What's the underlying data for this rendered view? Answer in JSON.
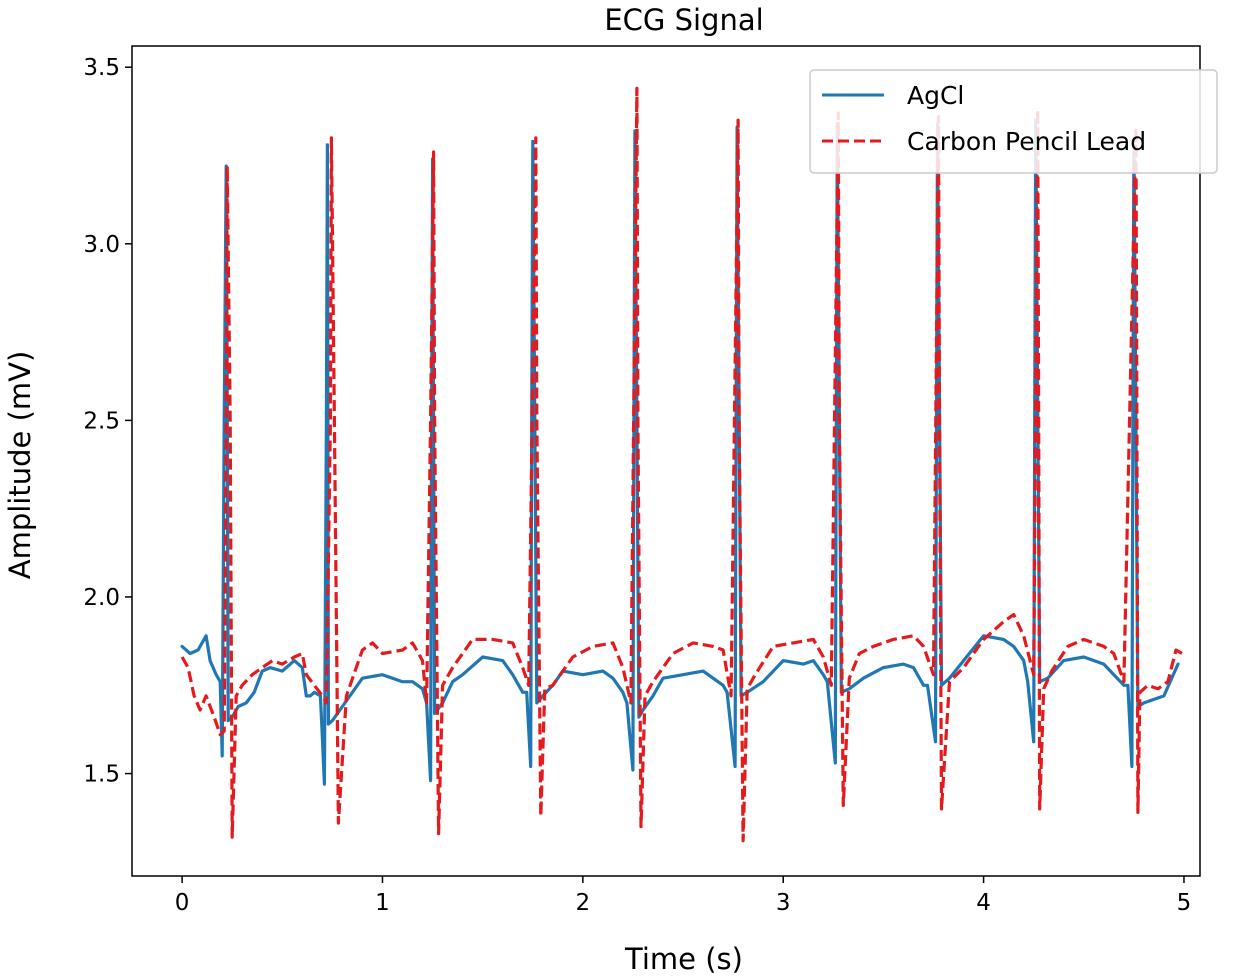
{
  "chart_data": {
    "type": "line",
    "title": "ECG Signal",
    "xlabel": "Time (s)",
    "ylabel": "Amplitude (mV)",
    "xlim": [
      -0.25,
      5.08
    ],
    "ylim": [
      1.21,
      3.56
    ],
    "x_ticks": [
      0,
      1,
      2,
      3,
      4,
      5
    ],
    "y_ticks": [
      1.5,
      2.0,
      2.5,
      3.0,
      3.5
    ],
    "x_tick_labels": [
      "0",
      "1",
      "2",
      "3",
      "4",
      "5"
    ],
    "y_tick_labels": [
      "1.5",
      "2.0",
      "2.5",
      "3.0",
      "3.5"
    ],
    "legend_position": "top-right",
    "series": [
      {
        "name": "AgCl",
        "color": "#1f77b4",
        "style": "solid",
        "x": [
          0,
          0.04,
          0.08,
          0.1,
          0.12,
          0.14,
          0.17,
          0.19,
          0.2,
          0.21,
          0.22,
          0.225,
          0.23,
          0.25,
          0.28,
          0.32,
          0.36,
          0.4,
          0.44,
          0.5,
          0.56,
          0.6,
          0.62,
          0.64,
          0.66,
          0.69,
          0.7,
          0.71,
          0.72,
          0.725,
          0.73,
          0.75,
          0.8,
          0.9,
          1.0,
          1.1,
          1.15,
          1.2,
          1.22,
          1.24,
          1.245,
          1.25,
          1.26,
          1.3,
          1.35,
          1.4,
          1.5,
          1.6,
          1.65,
          1.7,
          1.72,
          1.74,
          1.745,
          1.75,
          1.77,
          1.8,
          1.85,
          1.9,
          2.0,
          2.1,
          2.15,
          2.2,
          2.22,
          2.25,
          2.255,
          2.26,
          2.28,
          2.3,
          2.35,
          2.4,
          2.5,
          2.6,
          2.65,
          2.7,
          2.72,
          2.76,
          2.765,
          2.77,
          2.79,
          2.82,
          2.9,
          3.0,
          3.1,
          3.15,
          3.2,
          3.22,
          3.26,
          3.265,
          3.27,
          3.29,
          3.33,
          3.4,
          3.5,
          3.6,
          3.65,
          3.7,
          3.72,
          3.76,
          3.765,
          3.77,
          3.79,
          3.83,
          3.9,
          4.0,
          4.1,
          4.15,
          4.2,
          4.22,
          4.25,
          4.255,
          4.26,
          4.28,
          4.32,
          4.4,
          4.5,
          4.6,
          4.65,
          4.7,
          4.72,
          4.74,
          4.745,
          4.75,
          4.77,
          4.8,
          4.9,
          4.97
        ],
        "y": [
          1.86,
          1.84,
          1.85,
          1.87,
          1.89,
          1.82,
          1.78,
          1.76,
          1.55,
          2.5,
          3.22,
          2.6,
          1.65,
          1.66,
          1.69,
          1.7,
          1.73,
          1.79,
          1.8,
          1.79,
          1.82,
          1.8,
          1.72,
          1.72,
          1.73,
          1.72,
          1.6,
          1.47,
          2.5,
          3.28,
          1.64,
          1.65,
          1.69,
          1.77,
          1.78,
          1.76,
          1.76,
          1.74,
          1.7,
          1.48,
          2.5,
          3.24,
          1.67,
          1.7,
          1.76,
          1.78,
          1.83,
          1.82,
          1.78,
          1.73,
          1.73,
          1.52,
          2.5,
          3.29,
          1.7,
          1.72,
          1.75,
          1.79,
          1.78,
          1.79,
          1.77,
          1.73,
          1.7,
          1.51,
          2.5,
          3.32,
          1.66,
          1.68,
          1.72,
          1.77,
          1.78,
          1.79,
          1.77,
          1.75,
          1.73,
          1.52,
          2.5,
          3.33,
          1.72,
          1.73,
          1.76,
          1.82,
          1.81,
          1.82,
          1.78,
          1.76,
          1.53,
          2.5,
          3.34,
          1.73,
          1.74,
          1.77,
          1.8,
          1.81,
          1.8,
          1.75,
          1.75,
          1.59,
          2.5,
          3.34,
          1.75,
          1.77,
          1.82,
          1.89,
          1.88,
          1.86,
          1.82,
          1.76,
          1.59,
          2.5,
          3.35,
          1.76,
          1.77,
          1.82,
          1.83,
          1.81,
          1.78,
          1.75,
          1.75,
          1.52,
          2.5,
          3.3,
          1.69,
          1.7,
          1.72,
          1.81
        ]
      },
      {
        "name": "Carbon Pencil Lead",
        "color": "#e41a1c",
        "style": "dashed",
        "x": [
          0,
          0.03,
          0.06,
          0.09,
          0.12,
          0.16,
          0.19,
          0.21,
          0.22,
          0.225,
          0.24,
          0.25,
          0.27,
          0.3,
          0.35,
          0.4,
          0.45,
          0.5,
          0.56,
          0.6,
          0.62,
          0.66,
          0.7,
          0.72,
          0.74,
          0.745,
          0.76,
          0.78,
          0.82,
          0.9,
          0.95,
          1.0,
          1.1,
          1.15,
          1.2,
          1.22,
          1.24,
          1.255,
          1.26,
          1.28,
          1.3,
          1.35,
          1.45,
          1.55,
          1.65,
          1.7,
          1.73,
          1.765,
          1.77,
          1.79,
          1.81,
          1.85,
          1.95,
          2.05,
          2.15,
          2.2,
          2.24,
          2.27,
          2.275,
          2.29,
          2.31,
          2.35,
          2.45,
          2.55,
          2.65,
          2.7,
          2.74,
          2.775,
          2.78,
          2.8,
          2.82,
          2.86,
          2.95,
          3.05,
          3.15,
          3.2,
          3.24,
          3.275,
          3.28,
          3.3,
          3.33,
          3.38,
          3.45,
          3.55,
          3.65,
          3.7,
          3.75,
          3.775,
          3.78,
          3.79,
          3.83,
          3.9,
          4.0,
          4.1,
          4.15,
          4.2,
          4.25,
          4.27,
          4.275,
          4.28,
          4.3,
          4.34,
          4.42,
          4.5,
          4.6,
          4.65,
          4.7,
          4.76,
          4.765,
          4.77,
          4.78,
          4.82,
          4.87,
          4.92,
          4.96,
          4.99
        ],
        "y": [
          1.83,
          1.8,
          1.72,
          1.68,
          1.72,
          1.66,
          1.61,
          1.62,
          2.5,
          3.22,
          2.5,
          1.32,
          1.72,
          1.75,
          1.78,
          1.8,
          1.82,
          1.81,
          1.83,
          1.84,
          1.78,
          1.75,
          1.72,
          1.7,
          2.5,
          3.3,
          2.5,
          1.36,
          1.72,
          1.85,
          1.87,
          1.84,
          1.85,
          1.87,
          1.82,
          1.7,
          2.5,
          3.26,
          2.5,
          1.33,
          1.75,
          1.8,
          1.88,
          1.88,
          1.87,
          1.8,
          1.75,
          3.3,
          2.5,
          1.38,
          1.74,
          1.75,
          1.83,
          1.86,
          1.87,
          1.8,
          1.7,
          3.44,
          2.5,
          1.35,
          1.72,
          1.76,
          1.84,
          1.87,
          1.86,
          1.85,
          1.72,
          3.35,
          2.5,
          1.31,
          1.74,
          1.78,
          1.86,
          1.87,
          1.88,
          1.83,
          1.75,
          3.37,
          2.5,
          1.41,
          1.77,
          1.84,
          1.86,
          1.88,
          1.89,
          1.86,
          1.78,
          3.36,
          2.5,
          1.4,
          1.76,
          1.8,
          1.88,
          1.93,
          1.95,
          1.89,
          1.78,
          3.38,
          2.5,
          1.4,
          1.74,
          1.79,
          1.86,
          1.88,
          1.86,
          1.84,
          1.76,
          3.33,
          2.5,
          1.39,
          1.73,
          1.75,
          1.74,
          1.76,
          1.85,
          1.84
        ]
      }
    ]
  }
}
